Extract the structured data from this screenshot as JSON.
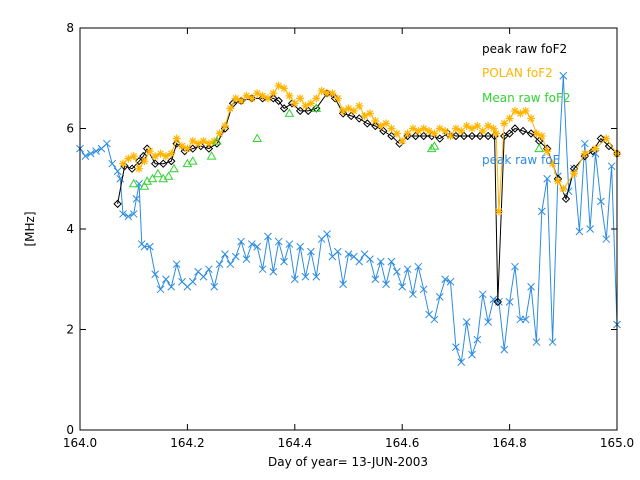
{
  "chart_data": {
    "type": "line",
    "title": "",
    "xlabel": "Day of year= 13-JUN-2003",
    "ylabel": "[MHz]",
    "xlim": [
      164.0,
      165.0
    ],
    "ylim": [
      0,
      8
    ],
    "x_ticks": [
      164.0,
      164.2,
      164.4,
      164.6,
      164.8,
      165.0
    ],
    "x_tick_labels": [
      "164.0",
      "164.2",
      "164.4",
      "164.6",
      "164.8",
      "165.0"
    ],
    "y_ticks": [
      0,
      2,
      4,
      6,
      8
    ],
    "y_tick_labels": [
      "0",
      "2",
      "4",
      "6",
      "8"
    ],
    "legend_position": "top-right",
    "series": [
      {
        "name": "peak raw foF2",
        "color": "#000000",
        "marker": "diamond",
        "x": [
          164.07,
          164.083,
          164.097,
          164.11,
          164.118,
          164.125,
          164.14,
          164.155,
          164.17,
          164.18,
          164.195,
          164.21,
          164.225,
          164.24,
          164.255,
          164.27,
          164.285,
          164.3,
          164.32,
          164.34,
          164.36,
          164.37,
          164.38,
          164.395,
          164.41,
          164.425,
          164.44,
          164.46,
          164.475,
          164.49,
          164.505,
          164.52,
          164.535,
          164.55,
          164.565,
          164.58,
          164.595,
          164.61,
          164.625,
          164.64,
          164.655,
          164.67,
          164.685,
          164.7,
          164.715,
          164.73,
          164.745,
          164.76,
          164.772,
          164.778,
          164.79,
          164.8,
          164.81,
          164.825,
          164.84,
          164.855,
          164.87,
          164.89,
          164.905,
          164.92,
          164.94,
          164.955,
          164.97,
          164.985,
          165.0
        ],
        "y": [
          4.5,
          5.25,
          5.2,
          5.35,
          5.45,
          5.6,
          5.3,
          5.3,
          5.35,
          5.7,
          5.55,
          5.6,
          5.65,
          5.6,
          5.7,
          6.0,
          6.5,
          6.55,
          6.6,
          6.6,
          6.6,
          6.55,
          6.4,
          6.5,
          6.35,
          6.35,
          6.4,
          6.7,
          6.6,
          6.3,
          6.25,
          6.2,
          6.1,
          6.05,
          5.95,
          5.85,
          5.7,
          5.85,
          5.85,
          5.85,
          5.85,
          5.8,
          5.9,
          5.85,
          5.85,
          5.85,
          5.85,
          5.85,
          5.85,
          2.55,
          5.85,
          5.9,
          6.0,
          5.95,
          5.9,
          5.75,
          5.6,
          5.0,
          4.6,
          5.2,
          5.45,
          5.55,
          5.8,
          5.65,
          5.5
        ]
      },
      {
        "name": "POLAN foF2",
        "color": "#ffb400",
        "marker": "star",
        "x": [
          164.08,
          164.09,
          164.1,
          164.11,
          164.12,
          164.13,
          164.14,
          164.15,
          164.16,
          164.17,
          164.18,
          164.19,
          164.2,
          164.21,
          164.22,
          164.23,
          164.24,
          164.25,
          164.26,
          164.27,
          164.28,
          164.29,
          164.3,
          164.31,
          164.32,
          164.33,
          164.34,
          164.35,
          164.36,
          164.37,
          164.38,
          164.39,
          164.4,
          164.41,
          164.42,
          164.43,
          164.44,
          164.45,
          164.46,
          164.47,
          164.48,
          164.49,
          164.5,
          164.51,
          164.52,
          164.53,
          164.54,
          164.55,
          164.56,
          164.57,
          164.58,
          164.59,
          164.6,
          164.61,
          164.62,
          164.63,
          164.64,
          164.65,
          164.66,
          164.67,
          164.68,
          164.69,
          164.7,
          164.71,
          164.72,
          164.73,
          164.74,
          164.75,
          164.76,
          164.77,
          164.775,
          164.78,
          164.79,
          164.8,
          164.81,
          164.82,
          164.83,
          164.84,
          164.85,
          164.86,
          164.87,
          164.88,
          164.89,
          164.9,
          164.92,
          164.94,
          164.96,
          164.98,
          165.0
        ],
        "y": [
          5.3,
          5.4,
          5.45,
          5.2,
          5.35,
          5.55,
          5.45,
          5.5,
          5.45,
          5.5,
          5.8,
          5.65,
          5.6,
          5.75,
          5.7,
          5.75,
          5.7,
          5.75,
          5.9,
          6.05,
          6.4,
          6.6,
          6.55,
          6.65,
          6.6,
          6.7,
          6.65,
          6.6,
          6.7,
          6.85,
          6.8,
          6.65,
          6.5,
          6.6,
          6.45,
          6.5,
          6.6,
          6.75,
          6.7,
          6.7,
          6.6,
          6.35,
          6.4,
          6.35,
          6.45,
          6.25,
          6.3,
          6.15,
          6.05,
          6.1,
          6.0,
          5.9,
          5.75,
          5.9,
          6.0,
          5.95,
          6.0,
          5.95,
          5.9,
          6.0,
          5.95,
          5.85,
          6.0,
          5.95,
          6.05,
          6.0,
          6.05,
          5.95,
          6.05,
          6.0,
          5.9,
          4.35,
          6.1,
          6.2,
          6.35,
          6.3,
          6.35,
          6.2,
          5.9,
          5.85,
          5.55,
          5.3,
          4.95,
          4.8,
          5.1,
          5.5,
          5.6,
          5.8,
          5.5
        ]
      },
      {
        "name": "Mean raw foF2",
        "color": "#32d232",
        "marker": "triangle",
        "x": [
          164.1,
          164.12,
          164.125,
          164.135,
          164.145,
          164.155,
          164.165,
          164.175,
          164.2,
          164.21,
          164.245,
          164.255,
          164.33,
          164.39,
          164.44,
          164.655,
          164.66,
          164.855
        ],
        "y": [
          4.9,
          4.85,
          4.95,
          5.0,
          5.1,
          5.0,
          5.05,
          5.2,
          5.3,
          5.35,
          5.45,
          5.75,
          5.8,
          6.3,
          6.4,
          5.6,
          5.65,
          5.6
        ]
      },
      {
        "name": "peak raw foE",
        "color": "#2d8ce1",
        "marker": "x",
        "x": [
          164.0,
          164.01,
          164.02,
          164.03,
          164.04,
          164.05,
          164.06,
          164.07,
          164.075,
          164.08,
          164.09,
          164.1,
          164.105,
          164.11,
          164.115,
          164.12,
          164.13,
          164.14,
          164.15,
          164.16,
          164.17,
          164.18,
          164.19,
          164.2,
          164.21,
          164.22,
          164.23,
          164.24,
          164.25,
          164.26,
          164.27,
          164.28,
          164.29,
          164.3,
          164.31,
          164.32,
          164.33,
          164.34,
          164.35,
          164.36,
          164.37,
          164.38,
          164.39,
          164.4,
          164.41,
          164.42,
          164.43,
          164.44,
          164.45,
          164.46,
          164.47,
          164.48,
          164.49,
          164.5,
          164.51,
          164.52,
          164.53,
          164.54,
          164.55,
          164.56,
          164.57,
          164.58,
          164.59,
          164.6,
          164.61,
          164.62,
          164.63,
          164.64,
          164.65,
          164.66,
          164.67,
          164.68,
          164.69,
          164.7,
          164.71,
          164.72,
          164.73,
          164.74,
          164.75,
          164.76,
          164.77,
          164.78,
          164.79,
          164.8,
          164.81,
          164.82,
          164.83,
          164.84,
          164.85,
          164.86,
          164.87,
          164.88,
          164.89,
          164.9,
          164.91,
          164.92,
          164.93,
          164.94,
          164.95,
          164.96,
          164.97,
          164.98,
          164.99,
          165.0
        ],
        "y": [
          5.6,
          5.45,
          5.5,
          5.55,
          5.6,
          5.7,
          5.3,
          5.15,
          5.0,
          4.3,
          4.25,
          4.3,
          4.6,
          4.9,
          3.7,
          3.65,
          3.65,
          3.1,
          2.8,
          3.0,
          2.85,
          3.3,
          2.95,
          2.85,
          2.95,
          3.15,
          3.05,
          3.2,
          2.85,
          3.3,
          3.5,
          3.3,
          3.45,
          3.75,
          3.4,
          3.7,
          3.65,
          3.2,
          3.85,
          3.15,
          3.75,
          3.35,
          3.7,
          3.0,
          3.65,
          3.05,
          3.55,
          3.05,
          3.8,
          3.9,
          3.45,
          3.55,
          2.9,
          3.5,
          3.45,
          3.35,
          3.5,
          3.4,
          3.0,
          3.35,
          2.9,
          3.35,
          3.15,
          2.85,
          3.2,
          2.7,
          3.25,
          2.8,
          2.3,
          2.2,
          2.65,
          3.0,
          2.95,
          1.65,
          1.35,
          2.15,
          1.5,
          1.8,
          2.7,
          2.15,
          2.6,
          2.55,
          1.6,
          2.55,
          3.25,
          2.2,
          2.2,
          2.85,
          1.75,
          4.35,
          5.0,
          1.75,
          5.05,
          7.05,
          4.75,
          5.2,
          3.95,
          5.7,
          4.0,
          5.5,
          4.55,
          3.8,
          5.25,
          2.1
        ]
      }
    ]
  }
}
